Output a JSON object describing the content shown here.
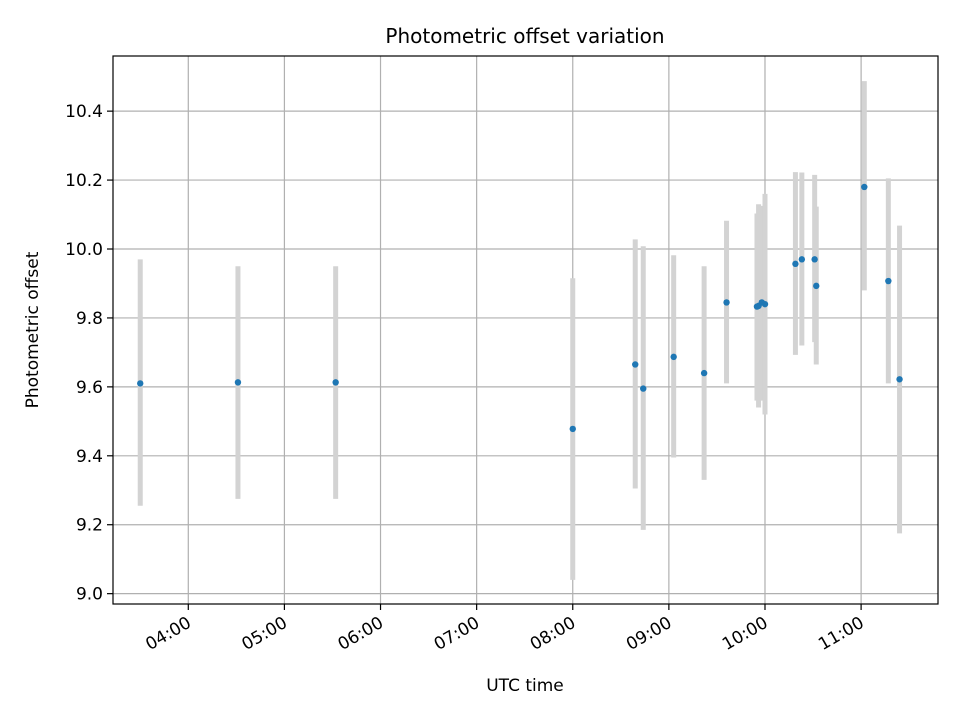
{
  "chart_data": {
    "type": "scatter",
    "title": "Photometric offset variation",
    "xlabel": "UTC time",
    "ylabel": "Photometric offset",
    "x_is_time": true,
    "xlim": [
      "03:13",
      "11:48"
    ],
    "ylim": [
      8.97,
      10.56
    ],
    "grid": true,
    "legend": "none",
    "x_ticks": [
      "04:00",
      "05:00",
      "06:00",
      "07:00",
      "08:00",
      "09:00",
      "10:00",
      "11:00"
    ],
    "y_ticks": [
      9.0,
      9.2,
      9.4,
      9.6,
      9.8,
      10.0,
      10.2,
      10.4
    ],
    "y_tick_labels": [
      "9.0",
      "9.2",
      "9.4",
      "9.6",
      "9.8",
      "10.0",
      "10.2",
      "10.4"
    ],
    "colors": {
      "points": "#1f77b4",
      "errorbars": "#d3d3d3",
      "grid": "#b0b0b0"
    },
    "series": [
      {
        "points": [
          {
            "x": "03:30",
            "y": 9.61,
            "low": 9.255,
            "high": 9.97
          },
          {
            "x": "04:31",
            "y": 9.613,
            "low": 9.275,
            "high": 9.95
          },
          {
            "x": "05:32",
            "y": 9.613,
            "low": 9.275,
            "high": 9.95
          },
          {
            "x": "08:00",
            "y": 9.478,
            "low": 9.04,
            "high": 9.915
          },
          {
            "x": "08:39",
            "y": 9.665,
            "low": 9.305,
            "high": 10.028
          },
          {
            "x": "08:44",
            "y": 9.595,
            "low": 9.185,
            "high": 10.008
          },
          {
            "x": "09:03",
            "y": 9.687,
            "low": 9.395,
            "high": 9.982
          },
          {
            "x": "09:22",
            "y": 9.64,
            "low": 9.33,
            "high": 9.95
          },
          {
            "x": "09:36",
            "y": 9.845,
            "low": 9.61,
            "high": 10.082
          },
          {
            "x": "09:55",
            "y": 9.833,
            "low": 9.56,
            "high": 10.103
          },
          {
            "x": "09:56",
            "y": 9.835,
            "low": 9.54,
            "high": 10.13
          },
          {
            "x": "09:58",
            "y": 9.845,
            "low": 9.56,
            "high": 10.125
          },
          {
            "x": "10:00",
            "y": 9.84,
            "low": 9.52,
            "high": 10.16
          },
          {
            "x": "10:19",
            "y": 9.957,
            "low": 9.693,
            "high": 10.223
          },
          {
            "x": "10:23",
            "y": 9.97,
            "low": 9.72,
            "high": 10.222
          },
          {
            "x": "10:31",
            "y": 9.97,
            "low": 9.73,
            "high": 10.215
          },
          {
            "x": "10:32",
            "y": 9.893,
            "low": 9.665,
            "high": 10.123
          },
          {
            "x": "11:02",
            "y": 10.18,
            "low": 9.88,
            "high": 10.487
          },
          {
            "x": "11:17",
            "y": 9.907,
            "low": 9.61,
            "high": 10.205
          },
          {
            "x": "11:24",
            "y": 9.622,
            "low": 9.175,
            "high": 10.068
          }
        ]
      }
    ]
  }
}
